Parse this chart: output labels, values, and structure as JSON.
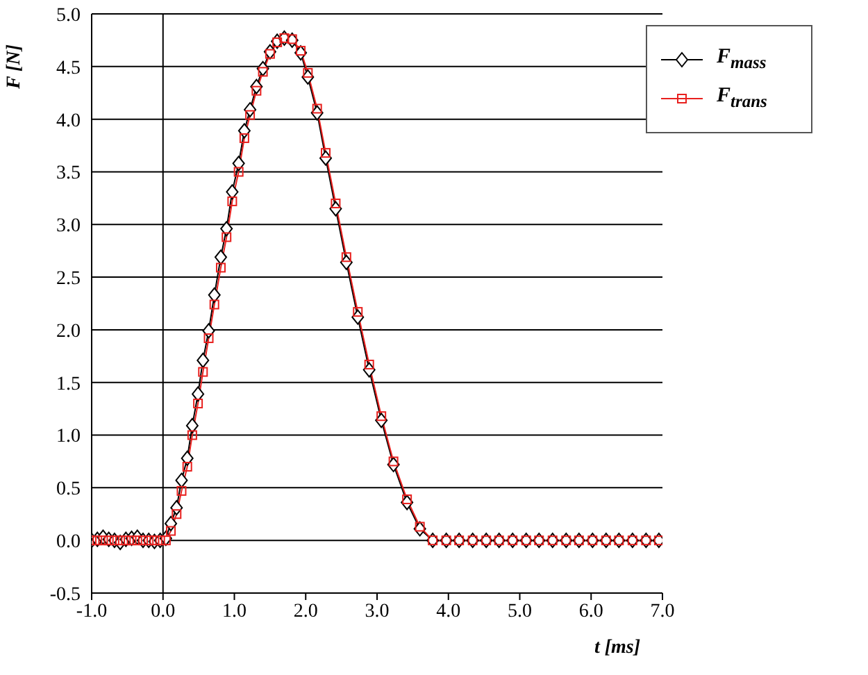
{
  "chart_data": {
    "type": "line",
    "xlabel": "t [ms]",
    "ylabel": "F [N]",
    "x": [
      -1.0,
      -0.92,
      -0.84,
      -0.76,
      -0.68,
      -0.6,
      -0.52,
      -0.44,
      -0.36,
      -0.28,
      -0.2,
      -0.12,
      -0.04,
      0.04,
      0.11,
      0.19,
      0.26,
      0.34,
      0.41,
      0.49,
      0.56,
      0.64,
      0.72,
      0.81,
      0.89,
      0.97,
      1.06,
      1.14,
      1.22,
      1.31,
      1.4,
      1.5,
      1.6,
      1.7,
      1.81,
      1.93,
      2.03,
      2.16,
      2.28,
      2.42,
      2.57,
      2.73,
      2.89,
      3.06,
      3.23,
      3.42,
      3.6,
      3.78,
      3.97,
      4.15,
      4.34,
      4.53,
      4.71,
      4.9,
      5.09,
      5.27,
      5.46,
      5.65,
      5.83,
      6.02,
      6.21,
      6.39,
      6.58,
      6.77,
      6.95
    ],
    "series": [
      {
        "name": "F$_{mass}$",
        "color": "#000000",
        "marker": "diamond",
        "values": [
          0,
          0.01,
          0.03,
          0.01,
          0,
          -0.02,
          0.01,
          0.02,
          0.03,
          0,
          0,
          -0.01,
          0,
          0.02,
          0.16,
          0.31,
          0.57,
          0.78,
          1.09,
          1.39,
          1.71,
          1.99,
          2.33,
          2.69,
          2.96,
          3.31,
          3.58,
          3.89,
          4.09,
          4.31,
          4.48,
          4.64,
          4.74,
          4.77,
          4.75,
          4.63,
          4.4,
          4.06,
          3.63,
          3.15,
          2.64,
          2.12,
          1.62,
          1.14,
          0.72,
          0.36,
          0.11,
          0,
          0,
          0,
          0,
          0,
          0,
          0,
          0,
          0,
          0,
          0,
          0,
          0,
          0,
          0,
          0,
          0,
          0
        ]
      },
      {
        "name": "F$_{trans}$",
        "color": "#e8201e",
        "marker": "square",
        "values": [
          0,
          0,
          0,
          0,
          0,
          0,
          0,
          0,
          0,
          0,
          0,
          0,
          0,
          0,
          0.09,
          0.25,
          0.47,
          0.7,
          1.0,
          1.3,
          1.6,
          1.92,
          2.24,
          2.59,
          2.88,
          3.22,
          3.5,
          3.82,
          4.04,
          4.27,
          4.45,
          4.62,
          4.73,
          4.77,
          4.76,
          4.65,
          4.44,
          4.1,
          3.68,
          3.2,
          2.69,
          2.17,
          1.67,
          1.18,
          0.75,
          0.39,
          0.13,
          0,
          0,
          0,
          0,
          0,
          0,
          0,
          0,
          0,
          0,
          0,
          0,
          0,
          0,
          0,
          0,
          0,
          0
        ]
      }
    ],
    "xlim": [
      -1,
      7
    ],
    "xticks": [
      {
        "value": -1,
        "label": "-1.0"
      },
      {
        "value": 0,
        "label": "0.0"
      },
      {
        "value": 1,
        "label": "1.0"
      },
      {
        "value": 2,
        "label": "2.0"
      },
      {
        "value": 3,
        "label": "3.0"
      },
      {
        "value": 4,
        "label": "4.0"
      },
      {
        "value": 5,
        "label": "5.0"
      },
      {
        "value": 6,
        "label": "6.0"
      },
      {
        "value": 7,
        "label": "7.0"
      }
    ],
    "ylim": [
      -0.5,
      5
    ],
    "yticks": [
      {
        "value": -0.5,
        "label": "-0.5"
      },
      {
        "value": 0,
        "label": "0.0"
      },
      {
        "value": 0.5,
        "label": "0.5"
      },
      {
        "value": 1,
        "label": "1.0"
      },
      {
        "value": 1.5,
        "label": "1.5"
      },
      {
        "value": 2,
        "label": "2.0"
      },
      {
        "value": 2.5,
        "label": "2.5"
      },
      {
        "value": 3,
        "label": "3.0"
      },
      {
        "value": 3.5,
        "label": "3.5"
      },
      {
        "value": 4,
        "label": "4.0"
      },
      {
        "value": 4.5,
        "label": "4.5"
      },
      {
        "value": 5,
        "label": "5.0"
      }
    ],
    "grid": "y",
    "legend": "top right",
    "line_style": "solid",
    "ref_lines": [
      {
        "axis": "x",
        "value": 0,
        "color": "#000000"
      }
    ]
  }
}
